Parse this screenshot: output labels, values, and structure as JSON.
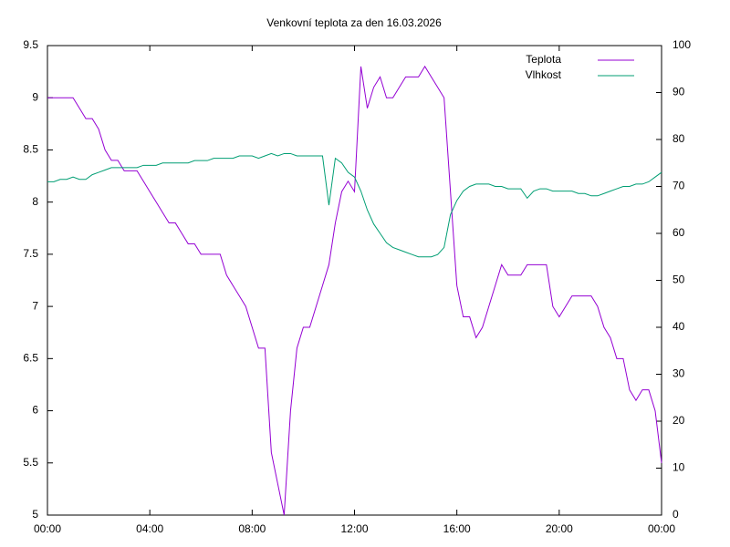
{
  "chart_data": {
    "type": "line",
    "title": "Venkovní teplota za den 16.03.2026",
    "x": [
      0,
      0.25,
      0.5,
      0.75,
      1,
      1.25,
      1.5,
      1.75,
      2,
      2.25,
      2.5,
      2.75,
      3,
      3.25,
      3.5,
      3.75,
      4,
      4.25,
      4.5,
      4.75,
      5,
      5.25,
      5.5,
      5.75,
      6,
      6.25,
      6.5,
      6.75,
      7,
      7.25,
      7.5,
      7.75,
      8,
      8.25,
      8.5,
      8.75,
      9,
      9.25,
      9.5,
      9.75,
      10,
      10.25,
      10.5,
      10.75,
      11,
      11.25,
      11.5,
      11.75,
      12,
      12.25,
      12.5,
      12.75,
      13,
      13.25,
      13.5,
      13.75,
      14,
      14.25,
      14.5,
      14.75,
      15,
      15.25,
      15.5,
      15.75,
      16,
      16.25,
      16.5,
      16.75,
      17,
      17.25,
      17.5,
      17.75,
      18,
      18.25,
      18.5,
      18.75,
      19,
      19.25,
      19.5,
      19.75,
      20,
      20.25,
      20.5,
      20.75,
      21,
      21.25,
      21.5,
      21.75,
      22,
      22.25,
      22.5,
      22.75,
      23,
      23.25,
      23.5,
      23.75,
      24
    ],
    "series": [
      {
        "name": "Teplota",
        "color": "#9400d3",
        "axis": "y",
        "values": [
          9.0,
          9.0,
          9.0,
          9.0,
          9.0,
          8.9,
          8.8,
          8.8,
          8.7,
          8.5,
          8.4,
          8.4,
          8.3,
          8.3,
          8.3,
          8.2,
          8.1,
          8.0,
          7.9,
          7.8,
          7.8,
          7.7,
          7.6,
          7.6,
          7.5,
          7.5,
          7.5,
          7.5,
          7.3,
          7.2,
          7.1,
          7.0,
          6.8,
          6.6,
          6.6,
          5.6,
          5.3,
          5.0,
          6.0,
          6.6,
          6.8,
          6.8,
          7.0,
          7.2,
          7.4,
          7.8,
          8.1,
          8.2,
          8.1,
          9.3,
          8.9,
          9.1,
          9.2,
          9.0,
          9.0,
          9.1,
          9.2,
          9.2,
          9.2,
          9.3,
          9.2,
          9.1,
          9.0,
          8.1,
          7.2,
          6.9,
          6.9,
          6.7,
          6.8,
          7.0,
          7.2,
          7.4,
          7.3,
          7.3,
          7.3,
          7.4,
          7.4,
          7.4,
          7.4,
          7.0,
          6.9,
          7.0,
          7.1,
          7.1,
          7.1,
          7.1,
          7.0,
          6.8,
          6.7,
          6.5,
          6.5,
          6.2,
          6.1,
          6.2,
          6.2,
          6.0,
          5.5
        ]
      },
      {
        "name": "Vlhkost",
        "color": "#009e73",
        "axis": "y2",
        "values": [
          71,
          71,
          71.5,
          71.5,
          72,
          71.5,
          71.5,
          72.5,
          73,
          73.5,
          74,
          74,
          74,
          74,
          74,
          74.5,
          74.5,
          74.5,
          75,
          75,
          75,
          75,
          75,
          75.5,
          75.5,
          75.5,
          76,
          76,
          76,
          76,
          76.5,
          76.5,
          76.5,
          76,
          76.5,
          77,
          76.5,
          77,
          77,
          76.5,
          76.5,
          76.5,
          76.5,
          76.5,
          66,
          76,
          75,
          73,
          72,
          69,
          65,
          62,
          60,
          58,
          57,
          56.5,
          56,
          55.5,
          55,
          55,
          55,
          55.5,
          57,
          64,
          67,
          69,
          70,
          70.5,
          70.5,
          70.5,
          70,
          70,
          69.5,
          69.5,
          69.5,
          67.5,
          69,
          69.5,
          69.5,
          69,
          69,
          69,
          69,
          68.5,
          68.5,
          68,
          68,
          68.5,
          69,
          69.5,
          70,
          70,
          70.5,
          70.5,
          71,
          72,
          73
        ]
      }
    ],
    "xlim": [
      0,
      24
    ],
    "xticks": [
      {
        "value": 0,
        "label": "00:00"
      },
      {
        "value": 4,
        "label": "04:00"
      },
      {
        "value": 8,
        "label": "08:00"
      },
      {
        "value": 12,
        "label": "12:00"
      },
      {
        "value": 16,
        "label": "16:00"
      },
      {
        "value": 20,
        "label": "20:00"
      },
      {
        "value": 24,
        "label": "00:00"
      }
    ],
    "ylim": [
      5,
      9.5
    ],
    "yticks": [
      5,
      5.5,
      6,
      6.5,
      7,
      7.5,
      8,
      8.5,
      9,
      9.5
    ],
    "y2lim": [
      0,
      100
    ],
    "y2ticks": [
      0,
      10,
      20,
      30,
      40,
      50,
      60,
      70,
      80,
      90,
      100
    ],
    "grid": false,
    "legend": "top-right"
  }
}
